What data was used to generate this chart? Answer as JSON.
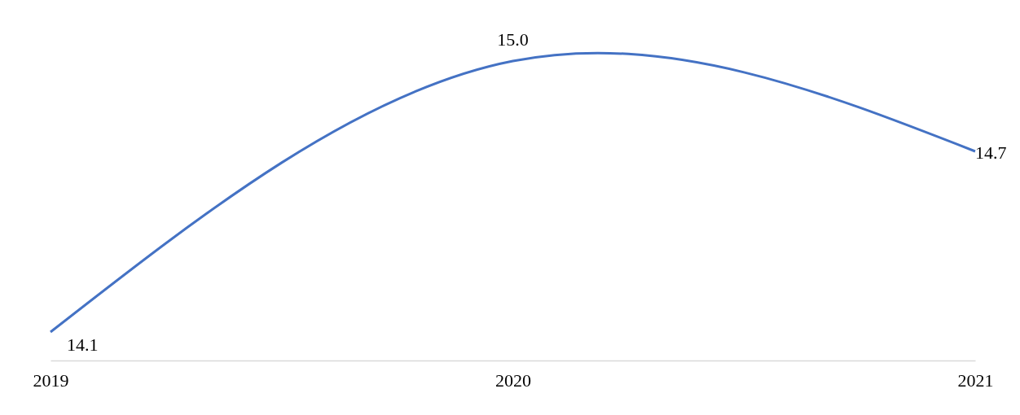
{
  "chart_data": {
    "type": "line",
    "categories": [
      "2019",
      "2020",
      "2021"
    ],
    "series": [
      {
        "color": "#4472c4",
        "values": [
          14.1,
          15.0,
          14.7
        ],
        "value_labels": [
          "14.1",
          "15.0",
          "14.7"
        ]
      }
    ],
    "tick_labels": "x",
    "grid": false,
    "legend": false,
    "marker": "none",
    "line_style": "solid"
  }
}
